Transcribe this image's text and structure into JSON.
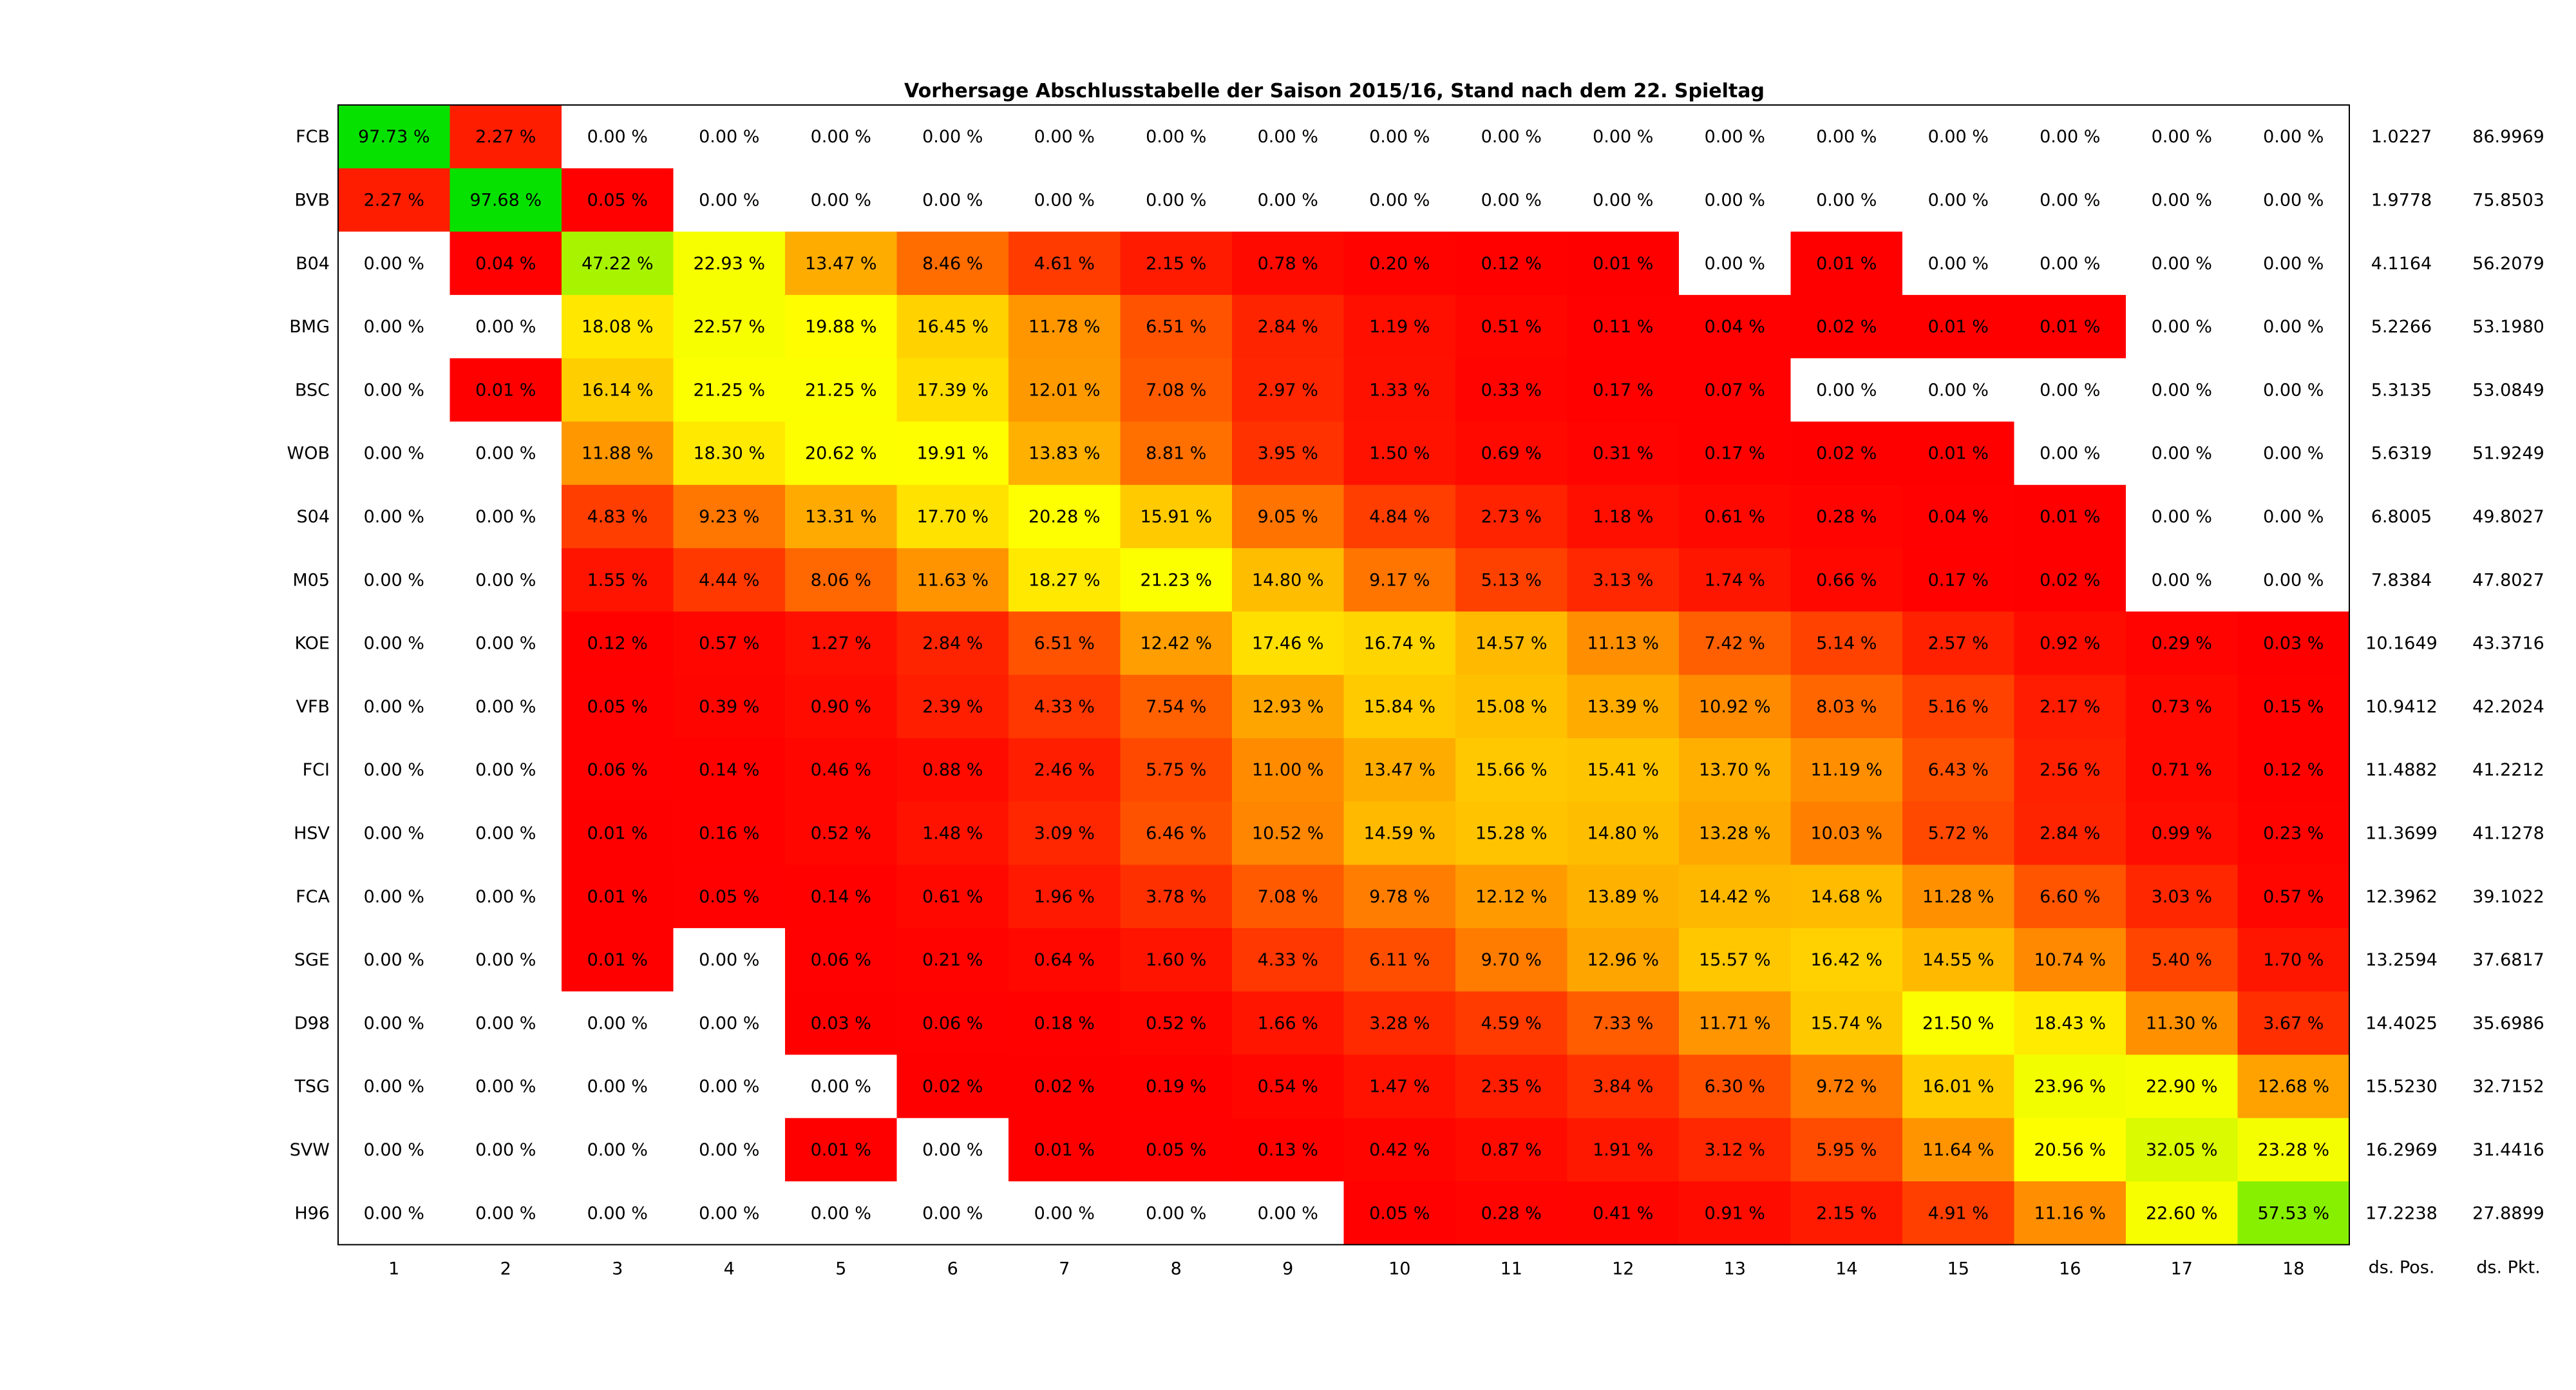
{
  "chart_data": {
    "type": "heatmap",
    "title": "Vorhersage Abschlusstabelle der Saison 2015/16, Stand nach dem 22. Spieltag",
    "xlabel": "",
    "ylabel": "",
    "columns": [
      "1",
      "2",
      "3",
      "4",
      "5",
      "6",
      "7",
      "8",
      "9",
      "10",
      "11",
      "12",
      "13",
      "14",
      "15",
      "16",
      "17",
      "18"
    ],
    "rows": [
      "FCB",
      "BVB",
      "B04",
      "BMG",
      "BSC",
      "WOB",
      "S04",
      "M05",
      "KOE",
      "VFB",
      "FCI",
      "HSV",
      "FCA",
      "SGE",
      "D98",
      "TSG",
      "SVW",
      "H96"
    ],
    "cell_unit": "%",
    "color_scale": {
      "zero": "#ffffff",
      "stops": [
        {
          "value": 0,
          "color": "#ff0000"
        },
        {
          "value": 20,
          "color": "#ffff00"
        },
        {
          "value": 100,
          "color": "#00e000"
        }
      ]
    },
    "values": [
      [
        "97.73",
        "2.27",
        "0.00",
        "0.00",
        "0.00",
        "0.00",
        "0.00",
        "0.00",
        "0.00",
        "0.00",
        "0.00",
        "0.00",
        "0.00",
        "0.00",
        "0.00",
        "0.00",
        "0.00",
        "0.00"
      ],
      [
        "2.27",
        "97.68",
        "0.05",
        "0.00",
        "0.00",
        "0.00",
        "0.00",
        "0.00",
        "0.00",
        "0.00",
        "0.00",
        "0.00",
        "0.00",
        "0.00",
        "0.00",
        "0.00",
        "0.00",
        "0.00"
      ],
      [
        "0.00",
        "0.04",
        "47.22",
        "22.93",
        "13.47",
        "8.46",
        "4.61",
        "2.15",
        "0.78",
        "0.20",
        "0.12",
        "0.01",
        "0.00",
        "0.01",
        "0.00",
        "0.00",
        "0.00",
        "0.00"
      ],
      [
        "0.00",
        "0.00",
        "18.08",
        "22.57",
        "19.88",
        "16.45",
        "11.78",
        "6.51",
        "2.84",
        "1.19",
        "0.51",
        "0.11",
        "0.04",
        "0.02",
        "0.01",
        "0.01",
        "0.00",
        "0.00"
      ],
      [
        "0.00",
        "0.01",
        "16.14",
        "21.25",
        "21.25",
        "17.39",
        "12.01",
        "7.08",
        "2.97",
        "1.33",
        "0.33",
        "0.17",
        "0.07",
        "0.00",
        "0.00",
        "0.00",
        "0.00",
        "0.00"
      ],
      [
        "0.00",
        "0.00",
        "11.88",
        "18.30",
        "20.62",
        "19.91",
        "13.83",
        "8.81",
        "3.95",
        "1.50",
        "0.69",
        "0.31",
        "0.17",
        "0.02",
        "0.01",
        "0.00",
        "0.00",
        "0.00"
      ],
      [
        "0.00",
        "0.00",
        "4.83",
        "9.23",
        "13.31",
        "17.70",
        "20.28",
        "15.91",
        "9.05",
        "4.84",
        "2.73",
        "1.18",
        "0.61",
        "0.28",
        "0.04",
        "0.01",
        "0.00",
        "0.00"
      ],
      [
        "0.00",
        "0.00",
        "1.55",
        "4.44",
        "8.06",
        "11.63",
        "18.27",
        "21.23",
        "14.80",
        "9.17",
        "5.13",
        "3.13",
        "1.74",
        "0.66",
        "0.17",
        "0.02",
        "0.00",
        "0.00"
      ],
      [
        "0.00",
        "0.00",
        "0.12",
        "0.57",
        "1.27",
        "2.84",
        "6.51",
        "12.42",
        "17.46",
        "16.74",
        "14.57",
        "11.13",
        "7.42",
        "5.14",
        "2.57",
        "0.92",
        "0.29",
        "0.03"
      ],
      [
        "0.00",
        "0.00",
        "0.05",
        "0.39",
        "0.90",
        "2.39",
        "4.33",
        "7.54",
        "12.93",
        "15.84",
        "15.08",
        "13.39",
        "10.92",
        "8.03",
        "5.16",
        "2.17",
        "0.73",
        "0.15"
      ],
      [
        "0.00",
        "0.00",
        "0.06",
        "0.14",
        "0.46",
        "0.88",
        "2.46",
        "5.75",
        "11.00",
        "13.47",
        "15.66",
        "15.41",
        "13.70",
        "11.19",
        "6.43",
        "2.56",
        "0.71",
        "0.12"
      ],
      [
        "0.00",
        "0.00",
        "0.01",
        "0.16",
        "0.52",
        "1.48",
        "3.09",
        "6.46",
        "10.52",
        "14.59",
        "15.28",
        "14.80",
        "13.28",
        "10.03",
        "5.72",
        "2.84",
        "0.99",
        "0.23"
      ],
      [
        "0.00",
        "0.00",
        "0.01",
        "0.05",
        "0.14",
        "0.61",
        "1.96",
        "3.78",
        "7.08",
        "9.78",
        "12.12",
        "13.89",
        "14.42",
        "14.68",
        "11.28",
        "6.60",
        "3.03",
        "0.57"
      ],
      [
        "0.00",
        "0.00",
        "0.01",
        "0.00",
        "0.06",
        "0.21",
        "0.64",
        "1.60",
        "4.33",
        "6.11",
        "9.70",
        "12.96",
        "15.57",
        "16.42",
        "14.55",
        "10.74",
        "5.40",
        "1.70"
      ],
      [
        "0.00",
        "0.00",
        "0.00",
        "0.00",
        "0.03",
        "0.06",
        "0.18",
        "0.52",
        "1.66",
        "3.28",
        "4.59",
        "7.33",
        "11.71",
        "15.74",
        "21.50",
        "18.43",
        "11.30",
        "3.67"
      ],
      [
        "0.00",
        "0.00",
        "0.00",
        "0.00",
        "0.00",
        "0.02",
        "0.02",
        "0.19",
        "0.54",
        "1.47",
        "2.35",
        "3.84",
        "6.30",
        "9.72",
        "16.01",
        "23.96",
        "22.90",
        "12.68"
      ],
      [
        "0.00",
        "0.00",
        "0.00",
        "0.00",
        "0.01",
        "0.00",
        "0.01",
        "0.05",
        "0.13",
        "0.42",
        "0.87",
        "1.91",
        "3.12",
        "5.95",
        "11.64",
        "20.56",
        "32.05",
        "23.28"
      ],
      [
        "0.00",
        "0.00",
        "0.00",
        "0.00",
        "0.00",
        "0.00",
        "0.00",
        "0.00",
        "0.00",
        "0.05",
        "0.28",
        "0.41",
        "0.91",
        "2.15",
        "4.91",
        "11.16",
        "22.60",
        "57.53"
      ]
    ],
    "extra_columns": [
      {
        "label": "ds. Pos.",
        "values": [
          "1.0227",
          "1.9778",
          "4.1164",
          "5.2266",
          "5.3135",
          "5.6319",
          "6.8005",
          "7.8384",
          "10.1649",
          "10.9412",
          "11.4882",
          "11.3699",
          "12.3962",
          "13.2594",
          "14.4025",
          "15.5230",
          "16.2969",
          "17.2238"
        ]
      },
      {
        "label": "ds. Pkt.",
        "values": [
          "86.9969",
          "75.8503",
          "56.2079",
          "53.1980",
          "53.0849",
          "51.9249",
          "49.8027",
          "47.8027",
          "43.3716",
          "42.2024",
          "41.2212",
          "41.1278",
          "39.1022",
          "37.6817",
          "35.6986",
          "32.7152",
          "31.4416",
          "27.8899"
        ]
      }
    ]
  }
}
